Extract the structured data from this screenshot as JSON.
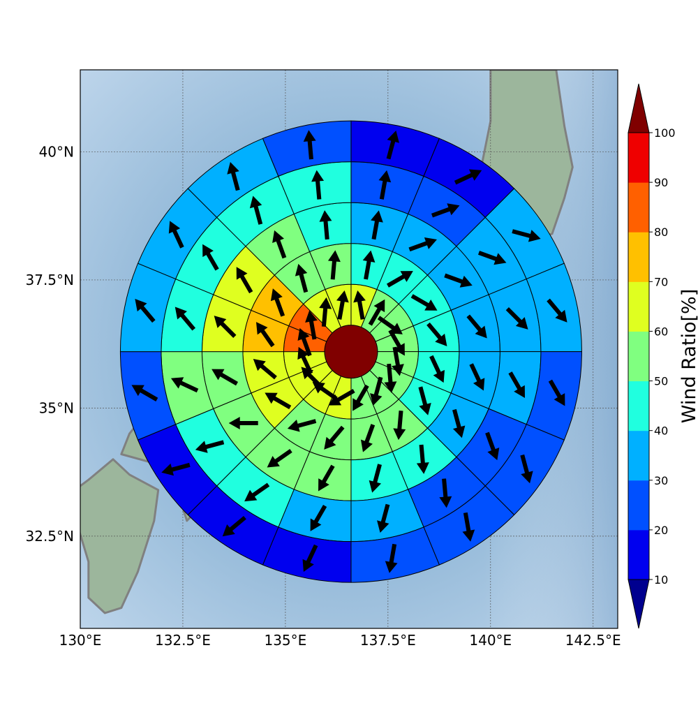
{
  "map": {
    "x_ticks": [
      {
        "label": "130°E",
        "lon": 130.0
      },
      {
        "label": "132.5°E",
        "lon": 132.5
      },
      {
        "label": "135°E",
        "lon": 135.0
      },
      {
        "label": "137.5°E",
        "lon": 137.5
      },
      {
        "label": "140°E",
        "lon": 140.0
      },
      {
        "label": "142.5°E",
        "lon": 142.5
      }
    ],
    "y_ticks": [
      {
        "label": "40°N",
        "lat": 40.0
      },
      {
        "label": "37.5°N",
        "lat": 37.5
      },
      {
        "label": "35°N",
        "lat": 35.0
      },
      {
        "label": "32.5°N",
        "lat": 32.5
      }
    ],
    "lon_range": [
      130.0,
      143.1
    ],
    "lat_range": [
      30.7,
      41.6
    ],
    "gridlines": true,
    "ocean_color": "#8fb5d6",
    "land_color": "#9cb69c",
    "coastline_color": "#808080"
  },
  "chart_data": {
    "type": "polar_sector_map",
    "center": {
      "lon": 136.6,
      "lat": 36.1
    },
    "ring_count": 6,
    "sector_count": 16,
    "sector_order": "clockwise from north; row index = ring (inner to outer)",
    "wind_ratio_percent": [
      [
        100,
        100,
        100,
        100,
        100,
        100,
        100,
        100,
        100,
        100,
        100,
        100,
        100,
        100,
        100,
        100
      ],
      [
        62,
        55,
        52,
        52,
        57,
        57,
        57,
        57,
        62,
        62,
        62,
        62,
        83,
        83,
        62,
        62
      ],
      [
        47,
        47,
        45,
        42,
        42,
        42,
        52,
        52,
        57,
        52,
        62,
        62,
        73,
        73,
        57,
        57
      ],
      [
        35,
        35,
        35,
        35,
        35,
        35,
        45,
        45,
        52,
        52,
        52,
        52,
        62,
        62,
        57,
        47
      ],
      [
        25,
        25,
        35,
        35,
        35,
        25,
        25,
        35,
        35,
        42,
        42,
        52,
        42,
        42,
        42,
        45
      ],
      [
        15,
        15,
        35,
        35,
        25,
        25,
        25,
        25,
        15,
        15,
        15,
        25,
        35,
        35,
        35,
        25
      ]
    ],
    "wind_direction_deg": [
      [
        0,
        0,
        0,
        0,
        0,
        0,
        0,
        0,
        0,
        0,
        0,
        0,
        0,
        0,
        0,
        0
      ],
      [
        -10,
        30,
        125,
        150,
        170,
        175,
        195,
        210,
        240,
        305,
        315,
        335,
        340,
        350,
        5,
        10
      ],
      [
        10,
        60,
        120,
        140,
        155,
        165,
        185,
        200,
        220,
        255,
        300,
        310,
        325,
        340,
        345,
        5
      ],
      [
        10,
        70,
        110,
        140,
        155,
        165,
        175,
        195,
        210,
        235,
        270,
        300,
        315,
        330,
        340,
        355
      ],
      [
        10,
        70,
        110,
        135,
        150,
        160,
        175,
        195,
        210,
        235,
        255,
        295,
        320,
        330,
        345,
        355
      ],
      [
        15,
        65,
        105,
        140,
        150,
        165,
        170,
        190,
        205,
        230,
        255,
        300,
        320,
        335,
        345,
        355
      ]
    ],
    "colorbar": {
      "label": "Wind Ratio[%]",
      "ticks": [
        10,
        20,
        30,
        40,
        50,
        60,
        70,
        80,
        90,
        100
      ],
      "bins": [
        {
          "range": [
            0,
            10
          ],
          "color": "#00008f"
        },
        {
          "range": [
            10,
            20
          ],
          "color": "#0000ef"
        },
        {
          "range": [
            20,
            30
          ],
          "color": "#0050ff"
        },
        {
          "range": [
            30,
            40
          ],
          "color": "#00b0ff"
        },
        {
          "range": [
            40,
            50
          ],
          "color": "#20ffdf"
        },
        {
          "range": [
            50,
            60
          ],
          "color": "#80ff80"
        },
        {
          "range": [
            60,
            70
          ],
          "color": "#dfff20"
        },
        {
          "range": [
            70,
            80
          ],
          "color": "#ffc000"
        },
        {
          "range": [
            80,
            90
          ],
          "color": "#ff6000"
        },
        {
          "range": [
            90,
            100
          ],
          "color": "#ef0000"
        },
        {
          "range": [
            100,
            110
          ],
          "color": "#800000"
        }
      ],
      "extend": "both"
    }
  }
}
